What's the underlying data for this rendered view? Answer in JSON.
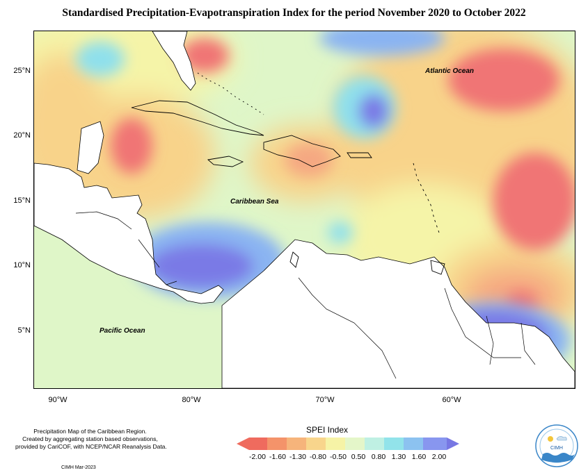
{
  "title": "Standardised Precipitation-Evapotranspiration Index for the period November 2020 to October 2022",
  "map": {
    "region": "Caribbean",
    "lat_labels": [
      "25°N",
      "20°N",
      "15°N",
      "10°N",
      "5°N"
    ],
    "lon_labels": [
      "90°W",
      "80°W",
      "70°W",
      "60°W"
    ],
    "places": {
      "atlantic": "Atlantic Ocean",
      "caribbean": "Caribbean Sea",
      "pacific": "Pacific Ocean"
    },
    "colors": {
      "very_dry": "#f07474",
      "dry": "#f5a882",
      "moderately_dry": "#f8d38a",
      "near_normal_dry": "#f5f4a8",
      "near_normal": "#dff6c8",
      "near_normal_wet": "#c3f0e2",
      "moderately_wet": "#8fe0ec",
      "wet": "#8ab4f2",
      "very_wet": "#7a7ae6",
      "land": "#ffffff"
    }
  },
  "legend": {
    "title": "SPEI Index",
    "breaks": [
      "-2.00",
      "-1.60",
      "-1.30",
      "-0.80",
      "-0.50",
      "0.50",
      "0.80",
      "1.30",
      "1.60",
      "2.00"
    ],
    "colors": [
      "#ef6b5e",
      "#f4936a",
      "#f6b47b",
      "#f8d58c",
      "#f6f3a6",
      "#e4f6c9",
      "#bff0e3",
      "#92e3ea",
      "#8cc2f0",
      "#8896ef",
      "#7777e3"
    ]
  },
  "note": {
    "lines": [
      "Precipitation Map of the Caribbean Region.",
      "Created by aggregating station based observations,",
      "provided by CariCOF, with NCEP/NCAR Reanalysis Data."
    ]
  },
  "credit": "CIMH Mar-2023",
  "logo_text": "CIMH"
}
